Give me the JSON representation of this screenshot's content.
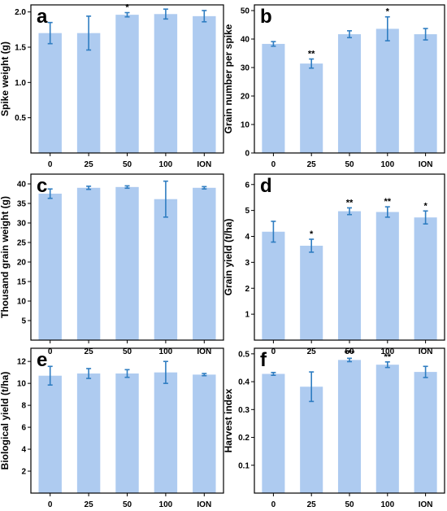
{
  "colors": {
    "bar": "#aecbf0",
    "error": "#2f7dc1",
    "axis": "#000000"
  },
  "chart_data": [
    {
      "letter": "a",
      "type": "bar",
      "ylabel": "Spike weight (g)",
      "categories": [
        "0",
        "25",
        "50",
        "100",
        "ION"
      ],
      "values": [
        1.7,
        1.7,
        1.96,
        1.97,
        1.94
      ],
      "errors": [
        0.15,
        0.24,
        0.03,
        0.07,
        0.08
      ],
      "significance": [
        "",
        "",
        "*",
        "",
        ""
      ],
      "ylim": [
        0,
        2.1
      ],
      "yticks": [
        0.5,
        1.0,
        1.5,
        2.0
      ],
      "ytick_labels": [
        "0.5",
        "1.0",
        "1.5",
        "2.0"
      ]
    },
    {
      "letter": "b",
      "type": "bar",
      "ylabel": "Grain number per spike",
      "categories": [
        "0",
        "25",
        "50",
        "100",
        "ION"
      ],
      "values": [
        38.3,
        31.4,
        41.7,
        43.6,
        41.7
      ],
      "errors": [
        0.8,
        1.6,
        1.2,
        4.2,
        2.0
      ],
      "significance": [
        "",
        "**",
        "",
        "*",
        ""
      ],
      "ylim": [
        0,
        52
      ],
      "yticks": [
        0,
        10,
        20,
        30,
        40,
        50
      ],
      "ytick_labels": [
        "0",
        "10",
        "20",
        "30",
        "40",
        "50"
      ]
    },
    {
      "letter": "c",
      "type": "bar",
      "ylabel": "Thousand grain weight (g)",
      "categories": [
        "0",
        "25",
        "50",
        "100",
        "ION"
      ],
      "values": [
        37.5,
        39.0,
        39.2,
        36.1,
        39.0
      ],
      "errors": [
        1.2,
        0.4,
        0.3,
        4.6,
        0.3
      ],
      "significance": [
        "",
        "",
        "",
        "",
        ""
      ],
      "ylim": [
        0,
        42.5
      ],
      "yticks": [
        5,
        10,
        15,
        20,
        25,
        30,
        35,
        40
      ],
      "ytick_labels": [
        "5",
        "10",
        "15",
        "20",
        "25",
        "30",
        "35",
        "40"
      ]
    },
    {
      "letter": "d",
      "type": "bar",
      "ylabel": "Grain yield (t/ha)",
      "categories": [
        "0",
        "25",
        "50",
        "100",
        "ION"
      ],
      "values": [
        4.18,
        3.64,
        4.97,
        4.94,
        4.73
      ],
      "errors": [
        0.4,
        0.25,
        0.13,
        0.2,
        0.25
      ],
      "significance": [
        "",
        "*",
        "**",
        "**",
        "*"
      ],
      "ylim": [
        0,
        6.4
      ],
      "yticks": [
        1,
        2,
        3,
        4,
        5,
        6
      ],
      "ytick_labels": [
        "1",
        "2",
        "3",
        "4",
        "5",
        "6"
      ]
    },
    {
      "letter": "e",
      "type": "bar",
      "ylabel": "Biological yield (t/ha)",
      "categories": [
        "0",
        "25",
        "50",
        "100",
        "ION"
      ],
      "values": [
        10.7,
        10.9,
        10.9,
        11.0,
        10.8
      ],
      "errors": [
        0.85,
        0.45,
        0.35,
        1.0,
        0.1
      ],
      "significance": [
        "",
        "",
        "",
        "",
        ""
      ],
      "ylim": [
        0,
        13.2
      ],
      "yticks": [
        2,
        4,
        6,
        8,
        10,
        12
      ],
      "ytick_labels": [
        "2",
        "4",
        "6",
        "8",
        "10",
        "12"
      ]
    },
    {
      "letter": "f",
      "type": "bar",
      "ylabel": "Harvest index",
      "categories": [
        "0",
        "25",
        "50",
        "100",
        "ION"
      ],
      "values": [
        0.428,
        0.382,
        0.478,
        0.461,
        0.435
      ],
      "errors": [
        0.005,
        0.053,
        0.006,
        0.01,
        0.02
      ],
      "significance": [
        "",
        "",
        "***",
        "**",
        ""
      ],
      "ylim": [
        0,
        0.52
      ],
      "yticks": [
        0.1,
        0.2,
        0.3,
        0.4,
        0.5
      ],
      "ytick_labels": [
        "0.1",
        "0.2",
        "0.3",
        "0.4",
        "0.5"
      ]
    }
  ]
}
